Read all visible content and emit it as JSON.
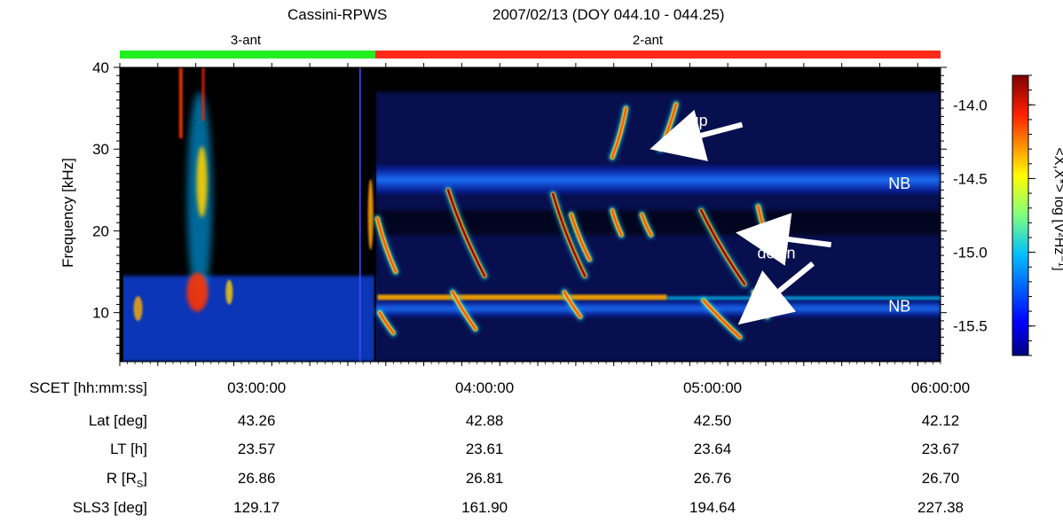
{
  "header": {
    "instrument": "Cassini-RPWS",
    "date_range": "2007/02/13 (DOY 044.10 - 044.25)"
  },
  "antenna_bar": {
    "segments": [
      {
        "label": "3-ant",
        "color": "#22ee22",
        "start_hours": 2.4,
        "end_hours": 3.52
      },
      {
        "label": "2-ant",
        "color": "#ff2a1a",
        "start_hours": 3.52,
        "end_hours": 6.0
      }
    ]
  },
  "chart_data": {
    "type": "heatmap",
    "title": "",
    "ylabel": "Frequency [kHz]",
    "colorbar_label": "<X,X*> log [V²Hz⁻¹]",
    "ylim_khz": [
      4,
      40
    ],
    "y_ticks": [
      10,
      20,
      30,
      40
    ],
    "xlim_hours": [
      2.4,
      6.0
    ],
    "x_ticks_hours": [
      3.0,
      4.0,
      5.0,
      6.0
    ],
    "clim": [
      -15.7,
      -13.8
    ],
    "colorbar_ticks": [
      "-14.0",
      "-14.5",
      "-15.0",
      "-15.5"
    ],
    "colorbar_tick_values": [
      -14.0,
      -14.5,
      -15.0,
      -15.5
    ],
    "features": {
      "down_drift_bursts": [
        {
          "t_start": 3.53,
          "t_end": 3.61,
          "f_start": 21.5,
          "f_end": 15.0
        },
        {
          "t_start": 3.84,
          "t_end": 4.0,
          "f_start": 25.0,
          "f_end": 14.5
        },
        {
          "t_start": 4.3,
          "t_end": 4.44,
          "f_start": 24.5,
          "f_end": 14.5
        },
        {
          "t_start": 4.38,
          "t_end": 4.46,
          "f_start": 22.0,
          "f_end": 16.5
        },
        {
          "t_start": 4.56,
          "t_end": 4.6,
          "f_start": 22.5,
          "f_end": 19.5
        },
        {
          "t_start": 4.69,
          "t_end": 4.73,
          "f_start": 22.0,
          "f_end": 19.5
        },
        {
          "t_start": 4.95,
          "t_end": 5.14,
          "f_start": 22.5,
          "f_end": 13.5
        },
        {
          "t_start": 5.2,
          "t_end": 5.26,
          "f_start": 23.0,
          "f_end": 17.5
        },
        {
          "t_start": 3.54,
          "t_end": 3.6,
          "f_start": 10.0,
          "f_end": 7.5
        },
        {
          "t_start": 3.86,
          "t_end": 3.96,
          "f_start": 12.5,
          "f_end": 8.0
        },
        {
          "t_start": 4.35,
          "t_end": 4.42,
          "f_start": 12.5,
          "f_end": 9.5
        },
        {
          "t_start": 4.96,
          "t_end": 5.12,
          "f_start": 11.5,
          "f_end": 7.0
        },
        {
          "t_start": 5.18,
          "t_end": 5.24,
          "f_start": 12.5,
          "f_end": 9.5
        }
      ],
      "up_drift_bursts": [
        {
          "t_start": 4.56,
          "t_end": 4.62,
          "f_start": 29.0,
          "f_end": 35.0
        },
        {
          "t_start": 4.77,
          "t_end": 4.84,
          "f_start": 30.0,
          "f_end": 35.5
        }
      ],
      "narrowband_bands_khz": [
        [
          24.5,
          28.0
        ],
        [
          9.5,
          11.5
        ]
      ]
    },
    "annotations": [
      {
        "text": "up",
        "t": 4.94,
        "f": 33.5,
        "arrow_to_t": 4.86,
        "arrow_to_f": 32.0
      },
      {
        "text": "NB",
        "t": 5.82,
        "f": 25.8
      },
      {
        "text": "down",
        "t": 5.28,
        "f": 17.3,
        "arrow_to_t": 5.16,
        "arrow_to_f": 20.0
      },
      {
        "text": "NB",
        "t": 5.82,
        "f": 10.8
      }
    ]
  },
  "ephemeris": {
    "rows": [
      {
        "label": "SCET [hh:mm:ss]",
        "values": [
          "03:00:00",
          "04:00:00",
          "05:00:00",
          "06:00:00"
        ]
      },
      {
        "label": "Lat [deg]",
        "values": [
          "43.26",
          "42.88",
          "42.50",
          "42.12"
        ]
      },
      {
        "label": "LT [h]",
        "values": [
          "23.57",
          "23.61",
          "23.64",
          "23.67"
        ]
      },
      {
        "label_main": "R [R",
        "label_sub": "S",
        "label_end": "]",
        "values": [
          "26.86",
          "26.81",
          "26.76",
          "26.70"
        ]
      },
      {
        "label": "SLS3 [deg]",
        "values": [
          "129.17",
          "161.90",
          "194.64",
          "227.38"
        ]
      }
    ]
  }
}
